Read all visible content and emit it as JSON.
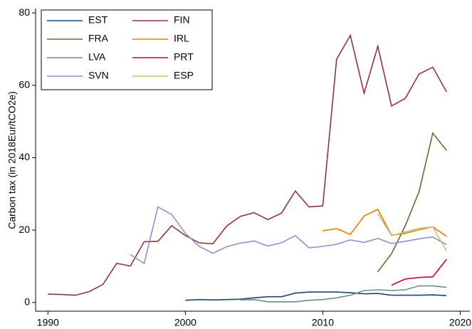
{
  "chart_data": {
    "type": "line",
    "y_label": "Carbon tax (in 2018Eur/tCO2e)",
    "x": [
      1990,
      1991,
      1992,
      1993,
      1994,
      1995,
      1996,
      1997,
      1998,
      1999,
      2000,
      2001,
      2002,
      2003,
      2004,
      2005,
      2006,
      2007,
      2008,
      2009,
      2010,
      2011,
      2012,
      2013,
      2014,
      2015,
      2016,
      2017,
      2018,
      2019
    ],
    "series": [
      {
        "name": "EST",
        "color": "#1a476f",
        "values": [
          null,
          null,
          null,
          null,
          null,
          null,
          null,
          null,
          null,
          null,
          0.6,
          0.8,
          0.7,
          0.8,
          0.9,
          1.3,
          1.6,
          1.6,
          2.6,
          2.9,
          2.9,
          2.9,
          2.7,
          2.4,
          2.5,
          2.0,
          2.0,
          2.0,
          2.1,
          1.9
        ]
      },
      {
        "name": "FIN",
        "color": "#90353b",
        "values": [
          2.3,
          2.2,
          2.0,
          3.0,
          5.0,
          10.8,
          10.1,
          16.8,
          16.9,
          21.2,
          18.5,
          16.5,
          16.2,
          21.1,
          23.8,
          24.8,
          22.9,
          24.7,
          30.8,
          26.4,
          26.7,
          67.2,
          73.8,
          57.8,
          70.8,
          54.3,
          56.4,
          63.1,
          65.0,
          58.2
        ]
      },
      {
        "name": "FRA",
        "color": "#55752f",
        "values": [
          null,
          null,
          null,
          null,
          null,
          null,
          null,
          null,
          null,
          null,
          null,
          null,
          null,
          null,
          null,
          null,
          null,
          null,
          null,
          null,
          null,
          null,
          null,
          null,
          8.5,
          13.5,
          21.2,
          30.6,
          46.8,
          42.0
        ]
      },
      {
        "name": "IRL",
        "color": "#e37e00",
        "values": [
          null,
          null,
          null,
          null,
          null,
          null,
          null,
          null,
          null,
          null,
          null,
          null,
          null,
          null,
          null,
          null,
          null,
          null,
          null,
          null,
          19.8,
          20.4,
          18.8,
          23.9,
          25.7,
          18.6,
          19.1,
          20.1,
          20.9,
          18.3
        ]
      },
      {
        "name": "LVA",
        "color": "#6e8e84",
        "values": [
          null,
          null,
          null,
          null,
          null,
          null,
          null,
          null,
          null,
          null,
          null,
          null,
          null,
          null,
          0.7,
          0.8,
          0.2,
          0.2,
          0.2,
          0.6,
          0.8,
          1.3,
          2.0,
          3.3,
          3.5,
          3.3,
          3.5,
          4.6,
          4.6,
          4.2
        ]
      },
      {
        "name": "PRT",
        "color": "#c10534",
        "values": [
          null,
          null,
          null,
          null,
          null,
          null,
          null,
          null,
          null,
          null,
          null,
          null,
          null,
          null,
          null,
          null,
          null,
          null,
          null,
          null,
          null,
          null,
          null,
          null,
          null,
          4.8,
          6.5,
          6.9,
          7.1,
          11.9
        ]
      },
      {
        "name": "SVN",
        "color": "#938dd2",
        "values": [
          null,
          null,
          null,
          null,
          null,
          null,
          13.2,
          10.8,
          26.4,
          24.3,
          19.1,
          15.5,
          13.6,
          15.4,
          16.4,
          17.0,
          15.6,
          16.5,
          18.5,
          15.1,
          15.5,
          16.1,
          17.3,
          16.6,
          17.7,
          16.3,
          16.9,
          17.6,
          18.1,
          16.0
        ]
      },
      {
        "name": "ESP",
        "color": "#cac27e",
        "values": [
          null,
          null,
          null,
          null,
          null,
          null,
          null,
          null,
          null,
          null,
          null,
          null,
          null,
          null,
          null,
          null,
          null,
          null,
          null,
          null,
          null,
          null,
          null,
          null,
          24.5,
          18.5,
          19.5,
          20.5,
          20.9,
          14.2
        ]
      }
    ],
    "xlim": [
      1989.1,
      2020.7
    ],
    "xticks": [
      1990,
      2000,
      2010,
      2020
    ],
    "ylim": [
      -2.4,
      81.2
    ],
    "yticks": [
      0,
      20,
      40,
      60,
      80
    ],
    "legend": "top-left",
    "grid": false
  }
}
